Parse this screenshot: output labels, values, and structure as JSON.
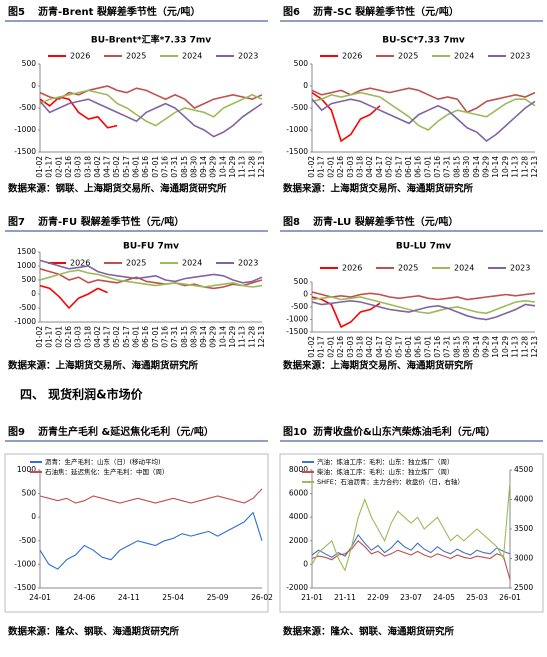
{
  "section_heading": "四、 现货利润&市场价",
  "chart_data": [
    {
      "type": "line",
      "figure": "图5",
      "caption": "沥青-Brent 裂解差季节性（元/吨）",
      "title": "BU-Brent*汇率*7.33 7mv",
      "source": "数据来源：钢联、上海期货交易所、海通期货研究所",
      "categories": [
        "01-02",
        "01-17",
        "02-01",
        "02-16",
        "03-03",
        "03-18",
        "04-02",
        "04-17",
        "05-02",
        "05-17",
        "06-01",
        "06-16",
        "07-01",
        "07-16",
        "07-31",
        "08-15",
        "08-30",
        "09-14",
        "09-29",
        "10-14",
        "10-29",
        "11-13",
        "11-28",
        "12-13"
      ],
      "ylim": [
        -1500,
        500
      ],
      "yticks": [
        -1500,
        -1000,
        -500,
        0,
        500
      ],
      "grid": false,
      "series": [
        {
          "name": "2026",
          "color": "#ff0000",
          "values": [
            -300,
            -450,
            -250,
            -300,
            -600,
            -750,
            -700,
            -950,
            -900,
            null,
            null,
            null,
            null,
            null,
            null,
            null,
            null,
            null,
            null,
            null,
            null,
            null,
            null,
            null
          ]
        },
        {
          "name": "2025",
          "color": "#c0504d",
          "values": [
            -150,
            -250,
            -300,
            -150,
            -200,
            -100,
            -50,
            0,
            -100,
            -150,
            -50,
            -100,
            -200,
            -300,
            -200,
            -300,
            -500,
            -400,
            -300,
            -250,
            -200,
            -250,
            -300,
            -200
          ]
        },
        {
          "name": "2024",
          "color": "#9bbb59",
          "values": [
            -400,
            -300,
            -250,
            -200,
            -150,
            -100,
            -150,
            -200,
            -400,
            -500,
            -650,
            -800,
            -900,
            -750,
            -600,
            -500,
            -550,
            -600,
            -700,
            -500,
            -400,
            -300,
            -200,
            -300
          ]
        },
        {
          "name": "2023",
          "color": "#8064a2",
          "values": [
            -350,
            -600,
            -500,
            -400,
            -350,
            -300,
            -400,
            -500,
            -600,
            -700,
            -800,
            -600,
            -500,
            -400,
            -500,
            -700,
            -900,
            -1000,
            -1150,
            -1050,
            -900,
            -700,
            -550,
            -400
          ]
        }
      ]
    },
    {
      "type": "line",
      "figure": "图6",
      "caption": "沥青-SC 裂解差季节性（元/吨）",
      "title": "BU-SC*7.33 7mv",
      "source": "数据来源：上海期货交易所、海通期货研究所",
      "categories": [
        "01-02",
        "01-17",
        "02-01",
        "02-16",
        "03-03",
        "03-18",
        "04-02",
        "04-17",
        "05-02",
        "05-17",
        "06-01",
        "06-16",
        "07-01",
        "07-16",
        "07-31",
        "08-15",
        "08-30",
        "09-14",
        "09-29",
        "10-14",
        "10-29",
        "11-13",
        "11-28",
        "12-13"
      ],
      "ylim": [
        -1500,
        500
      ],
      "yticks": [
        -1500,
        -1000,
        -500,
        0,
        500
      ],
      "grid": false,
      "series": [
        {
          "name": "2026",
          "color": "#ff0000",
          "values": [
            -150,
            -300,
            -550,
            -1250,
            -1100,
            -750,
            -650,
            -450,
            null,
            null,
            null,
            null,
            null,
            null,
            null,
            null,
            null,
            null,
            null,
            null,
            null,
            null,
            null,
            null
          ]
        },
        {
          "name": "2025",
          "color": "#c0504d",
          "values": [
            -100,
            -200,
            -150,
            -100,
            -200,
            -100,
            -50,
            -100,
            -150,
            -100,
            -50,
            -100,
            -200,
            -300,
            -250,
            -300,
            -600,
            -500,
            -350,
            -300,
            -250,
            -200,
            -250,
            -150
          ]
        },
        {
          "name": "2024",
          "color": "#9bbb59",
          "values": [
            -350,
            -300,
            -200,
            -250,
            -200,
            -150,
            -200,
            -250,
            -400,
            -550,
            -700,
            -900,
            -1000,
            -800,
            -650,
            -550,
            -600,
            -650,
            -700,
            -550,
            -400,
            -300,
            -300,
            -450
          ]
        },
        {
          "name": "2023",
          "color": "#8064a2",
          "values": [
            -300,
            -550,
            -400,
            -350,
            -300,
            -350,
            -450,
            -550,
            -650,
            -750,
            -850,
            -650,
            -550,
            -450,
            -550,
            -750,
            -950,
            -1050,
            -1250,
            -1100,
            -900,
            -700,
            -500,
            -350
          ]
        }
      ]
    },
    {
      "type": "line",
      "figure": "图7",
      "caption": "沥青-FU 裂解差季节性（元/吨）",
      "title": "BU-FU 7mv",
      "source": "数据来源：上海期货交易所、海通期货研究所",
      "categories": [
        "01-02",
        "01-17",
        "02-01",
        "02-16",
        "03-03",
        "03-18",
        "04-02",
        "04-17",
        "05-02",
        "05-17",
        "06-01",
        "06-16",
        "07-01",
        "07-16",
        "07-31",
        "08-15",
        "08-30",
        "09-14",
        "09-29",
        "10-14",
        "10-29",
        "11-13",
        "11-28",
        "12-13"
      ],
      "ylim": [
        -1000,
        1500
      ],
      "yticks": [
        -1000,
        -500,
        0,
        500,
        1000,
        1500
      ],
      "grid": false,
      "series": [
        {
          "name": "2026",
          "color": "#ff0000",
          "values": [
            300,
            200,
            -100,
            -500,
            -150,
            0,
            200,
            50,
            null,
            null,
            null,
            null,
            null,
            null,
            null,
            null,
            null,
            null,
            null,
            null,
            null,
            null,
            null,
            null
          ]
        },
        {
          "name": "2025",
          "color": "#c0504d",
          "values": [
            900,
            800,
            700,
            500,
            600,
            400,
            500,
            450,
            400,
            500,
            600,
            450,
            400,
            350,
            400,
            300,
            350,
            250,
            200,
            250,
            350,
            300,
            400,
            500
          ]
        },
        {
          "name": "2024",
          "color": "#9bbb59",
          "values": [
            500,
            600,
            700,
            800,
            850,
            750,
            700,
            600,
            500,
            450,
            400,
            350,
            300,
            350,
            400,
            350,
            300,
            250,
            300,
            350,
            400,
            300,
            250,
            300
          ]
        },
        {
          "name": "2023",
          "color": "#8064a2",
          "values": [
            1200,
            1100,
            1000,
            900,
            950,
            1000,
            800,
            700,
            650,
            600,
            550,
            600,
            650,
            500,
            450,
            550,
            600,
            650,
            700,
            650,
            500,
            400,
            450,
            600
          ]
        }
      ]
    },
    {
      "type": "line",
      "figure": "图8",
      "caption": "沥青-LU 裂解差季节性（元/吨）",
      "title": "BU-LU 7mv",
      "source": "数据来源：上海期货交易所、海通期货研究所",
      "categories": [
        "01-02",
        "01-17",
        "02-01",
        "02-16",
        "03-03",
        "03-18",
        "04-02",
        "04-17",
        "05-02",
        "05-17",
        "06-01",
        "06-16",
        "07-01",
        "07-16",
        "07-31",
        "08-15",
        "08-30",
        "09-14",
        "09-29",
        "10-14",
        "10-29",
        "11-13",
        "11-28",
        "12-13"
      ],
      "ylim": [
        -1500,
        500
      ],
      "yticks": [
        -1500,
        -1000,
        -500,
        0,
        500
      ],
      "grid": false,
      "series": [
        {
          "name": "2026",
          "color": "#ff0000",
          "values": [
            -100,
            -200,
            -400,
            -1300,
            -1100,
            -700,
            -600,
            -350,
            null,
            null,
            null,
            null,
            null,
            null,
            null,
            null,
            null,
            null,
            null,
            null,
            null,
            null,
            null,
            null
          ]
        },
        {
          "name": "2025",
          "color": "#c0504d",
          "values": [
            100,
            0,
            -100,
            -50,
            -100,
            0,
            50,
            0,
            -100,
            -150,
            -100,
            -50,
            -150,
            -200,
            -150,
            -100,
            -200,
            -150,
            -100,
            -50,
            0,
            -50,
            0,
            50
          ]
        },
        {
          "name": "2024",
          "color": "#9bbb59",
          "values": [
            -200,
            -150,
            -100,
            -200,
            -150,
            -100,
            -200,
            -300,
            -400,
            -500,
            -600,
            -700,
            -750,
            -650,
            -550,
            -500,
            -600,
            -700,
            -750,
            -600,
            -450,
            -300,
            -250,
            -300
          ]
        },
        {
          "name": "2023",
          "color": "#8064a2",
          "values": [
            -300,
            -400,
            -350,
            -300,
            -250,
            -300,
            -400,
            -500,
            -600,
            -650,
            -700,
            -600,
            -500,
            -450,
            -550,
            -700,
            -850,
            -950,
            -1000,
            -900,
            -750,
            -600,
            -400,
            -450
          ]
        }
      ]
    },
    {
      "type": "line",
      "figure": "图9",
      "caption": "沥青生产毛利 &延迟焦化毛利（元/吨）",
      "source": "数据来源：隆众、钢联、海通期货研究所",
      "categories": [
        "24-01",
        null,
        null,
        null,
        null,
        "24-06",
        null,
        null,
        null,
        null,
        "24-11",
        null,
        null,
        null,
        null,
        "25-04",
        null,
        null,
        null,
        null,
        "25-09",
        null,
        null,
        null,
        null,
        "26-02"
      ],
      "ylim": [
        -1500,
        1000
      ],
      "yticks": [
        -1500,
        -1000,
        -500,
        0,
        500,
        1000
      ],
      "grid": false,
      "series": [
        {
          "name": "沥青：生产毛利：山东（日）(移动平均)",
          "color": "#2f6fd6",
          "values": [
            -700,
            -1000,
            -1100,
            -900,
            -800,
            -600,
            -700,
            -850,
            -900,
            -700,
            -600,
            -500,
            -550,
            -600,
            -500,
            -450,
            -350,
            -400,
            -350,
            -300,
            -400,
            -300,
            -200,
            -100,
            100,
            -500
          ]
        },
        {
          "name": "石油焦：延迟焦化：生产毛利：中国（周）",
          "color": "#c0504d",
          "values": [
            450,
            400,
            350,
            400,
            300,
            350,
            450,
            400,
            350,
            300,
            350,
            400,
            350,
            300,
            350,
            400,
            350,
            300,
            350,
            400,
            450,
            400,
            350,
            300,
            400,
            600
          ]
        }
      ]
    },
    {
      "type": "line",
      "figure": "图10",
      "caption": "沥青收盘价&山东汽柴炼油毛利（元/吨）",
      "source": "数据来源：隆众、钢联、海通期货研究所",
      "categories": [
        "21-01",
        null,
        null,
        null,
        null,
        "21-11",
        null,
        null,
        null,
        null,
        "22-09",
        null,
        null,
        null,
        null,
        "23-07",
        null,
        null,
        null,
        null,
        "24-05",
        null,
        null,
        null,
        null,
        "25-03",
        null,
        null,
        null,
        null,
        "26-01"
      ],
      "ylim": [
        -2000,
        8000
      ],
      "yticks": [
        -2000,
        0,
        2000,
        4000,
        6000,
        8000
      ],
      "y2lim": [
        2500,
        4500
      ],
      "y2ticks": [
        2500,
        3000,
        3500,
        4000,
        4500
      ],
      "grid": false,
      "series": [
        {
          "name": "汽油：炼油工序：毛利：山东：独立炼厂（周）",
          "color": "#4472c4",
          "values": [
            800,
            1200,
            900,
            600,
            1000,
            700,
            1500,
            2500,
            1800,
            1200,
            1600,
            1000,
            1400,
            2000,
            1500,
            1200,
            1800,
            1300,
            1000,
            1500,
            1100,
            900,
            1300,
            1000,
            800,
            1200,
            1000,
            900,
            1400,
            1100,
            900
          ]
        },
        {
          "name": "柴油：炼油工序：毛利：山东：独立炼厂（周）",
          "color": "#c0504d",
          "values": [
            500,
            700,
            600,
            400,
            800,
            900,
            1300,
            2000,
            1500,
            900,
            1100,
            700,
            900,
            1200,
            1000,
            800,
            1100,
            800,
            600,
            900,
            700,
            500,
            800,
            600,
            500,
            700,
            600,
            500,
            900,
            700,
            -1300
          ]
        },
        {
          "name": "SHFE：石油沥青：主力合约：收盘价（日，右轴）",
          "color": "#9bbb59",
          "axis": "y2",
          "values": [
            2900,
            3100,
            3200,
            3300,
            3000,
            2800,
            3200,
            3700,
            4000,
            3700,
            3500,
            3300,
            3600,
            3800,
            3700,
            3600,
            3700,
            3500,
            3600,
            3700,
            3500,
            3300,
            3400,
            3300,
            3400,
            3500,
            3400,
            3300,
            3200,
            3000,
            4300
          ]
        }
      ]
    }
  ]
}
